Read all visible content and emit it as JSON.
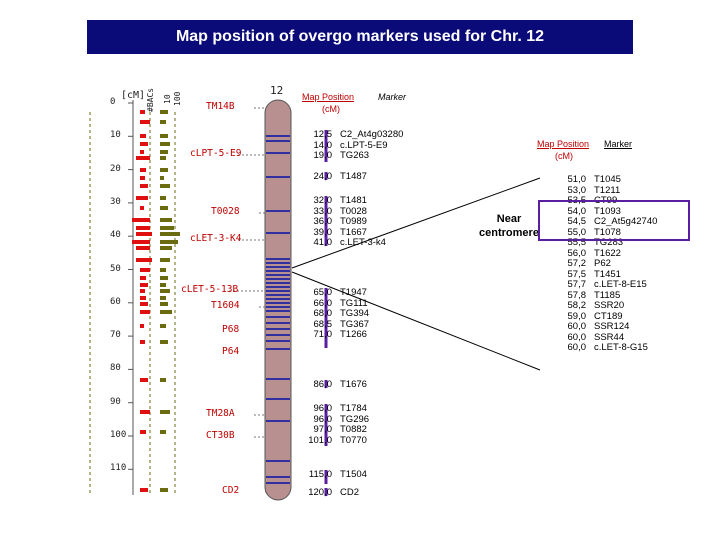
{
  "title": "Map position of overgo markers used for Chr. 12",
  "chromosome_label": "12",
  "scale": {
    "unit_label": "[cM]",
    "ticks": [
      "0",
      "10",
      "20",
      "30",
      "40",
      "50",
      "60",
      "70",
      "80",
      "90",
      "100",
      "110"
    ]
  },
  "column_headers": [
    "#BACs",
    "10",
    "100"
  ],
  "left_markers": [
    "TM14B",
    "cLPT-5-E9",
    "T0028",
    "cLET-3-K4",
    "cLET-5-13B",
    "T1604",
    "P68",
    "P64",
    "TM28A",
    "CT30B",
    "CD2"
  ],
  "headers": {
    "map_position": "Map Position",
    "cm": "(cM)",
    "marker": "Marker"
  },
  "groups": [
    [
      {
        "pos": "12,5",
        "marker": "C2_At4g03280"
      },
      {
        "pos": "14,0",
        "marker": "c.LPT-5-E9"
      },
      {
        "pos": "19,0",
        "marker": "TG263"
      }
    ],
    [
      {
        "pos": "24,0",
        "marker": "T1487"
      }
    ],
    [
      {
        "pos": "32,0",
        "marker": "T1481"
      },
      {
        "pos": "33,0",
        "marker": "T0028"
      },
      {
        "pos": "36,0",
        "marker": "T0989"
      },
      {
        "pos": "39,0",
        "marker": "T1667"
      },
      {
        "pos": "41,0",
        "marker": "c.LET-3-k4"
      }
    ],
    [
      {
        "pos": "65,0",
        "marker": "T1947"
      },
      {
        "pos": "66,0",
        "marker": "TG111"
      },
      {
        "pos": "68,0",
        "marker": "TG394"
      },
      {
        "pos": "68,5",
        "marker": "TG367"
      },
      {
        "pos": "71,0",
        "marker": "T1266"
      }
    ],
    [
      {
        "pos": "86,0",
        "marker": "T1676"
      }
    ],
    [
      {
        "pos": "96,0",
        "marker": "T1784"
      },
      {
        "pos": "96,0",
        "marker": "TG296"
      },
      {
        "pos": "97,0",
        "marker": "T0882"
      },
      {
        "pos": "101,0",
        "marker": "T0770"
      }
    ],
    [
      {
        "pos": "115,0",
        "marker": "T1504"
      }
    ],
    [
      {
        "pos": "120,0",
        "marker": "CD2"
      }
    ]
  ],
  "near_centromere_label": "Near centromere",
  "right_table": [
    {
      "pos": "51,0",
      "marker": "T1045"
    },
    {
      "pos": "53,0",
      "marker": "T1211"
    },
    {
      "pos": "53,5",
      "marker": "CT99"
    },
    {
      "pos": "54,0",
      "marker": "T1093"
    },
    {
      "pos": "54,5",
      "marker": "C2_At5g42740"
    },
    {
      "pos": "55,0",
      "marker": "T1078"
    },
    {
      "pos": "55,5",
      "marker": "TG283"
    },
    {
      "pos": "56,0",
      "marker": "T1622"
    },
    {
      "pos": "57,2",
      "marker": "P62"
    },
    {
      "pos": "57,5",
      "marker": "T1451"
    },
    {
      "pos": "57,7",
      "marker": "c.LET-8-E15"
    },
    {
      "pos": "57,8",
      "marker": "T1185"
    },
    {
      "pos": "58,2",
      "marker": "SSR20"
    },
    {
      "pos": "59,0",
      "marker": "CT189"
    },
    {
      "pos": "60,0",
      "marker": "SSR124"
    },
    {
      "pos": "60,0",
      "marker": "SSR44"
    },
    {
      "pos": "60,0",
      "marker": "c.LET-8-G15"
    }
  ],
  "colors": {
    "title_bg": "#0a0a78",
    "red_bars": "#e01010",
    "olive_bars": "#6b6b10",
    "chromosome_fill": "#b89090",
    "bands": "#3030a0",
    "marker_lines": "#5a1fa0",
    "header_red": "#c00000"
  }
}
